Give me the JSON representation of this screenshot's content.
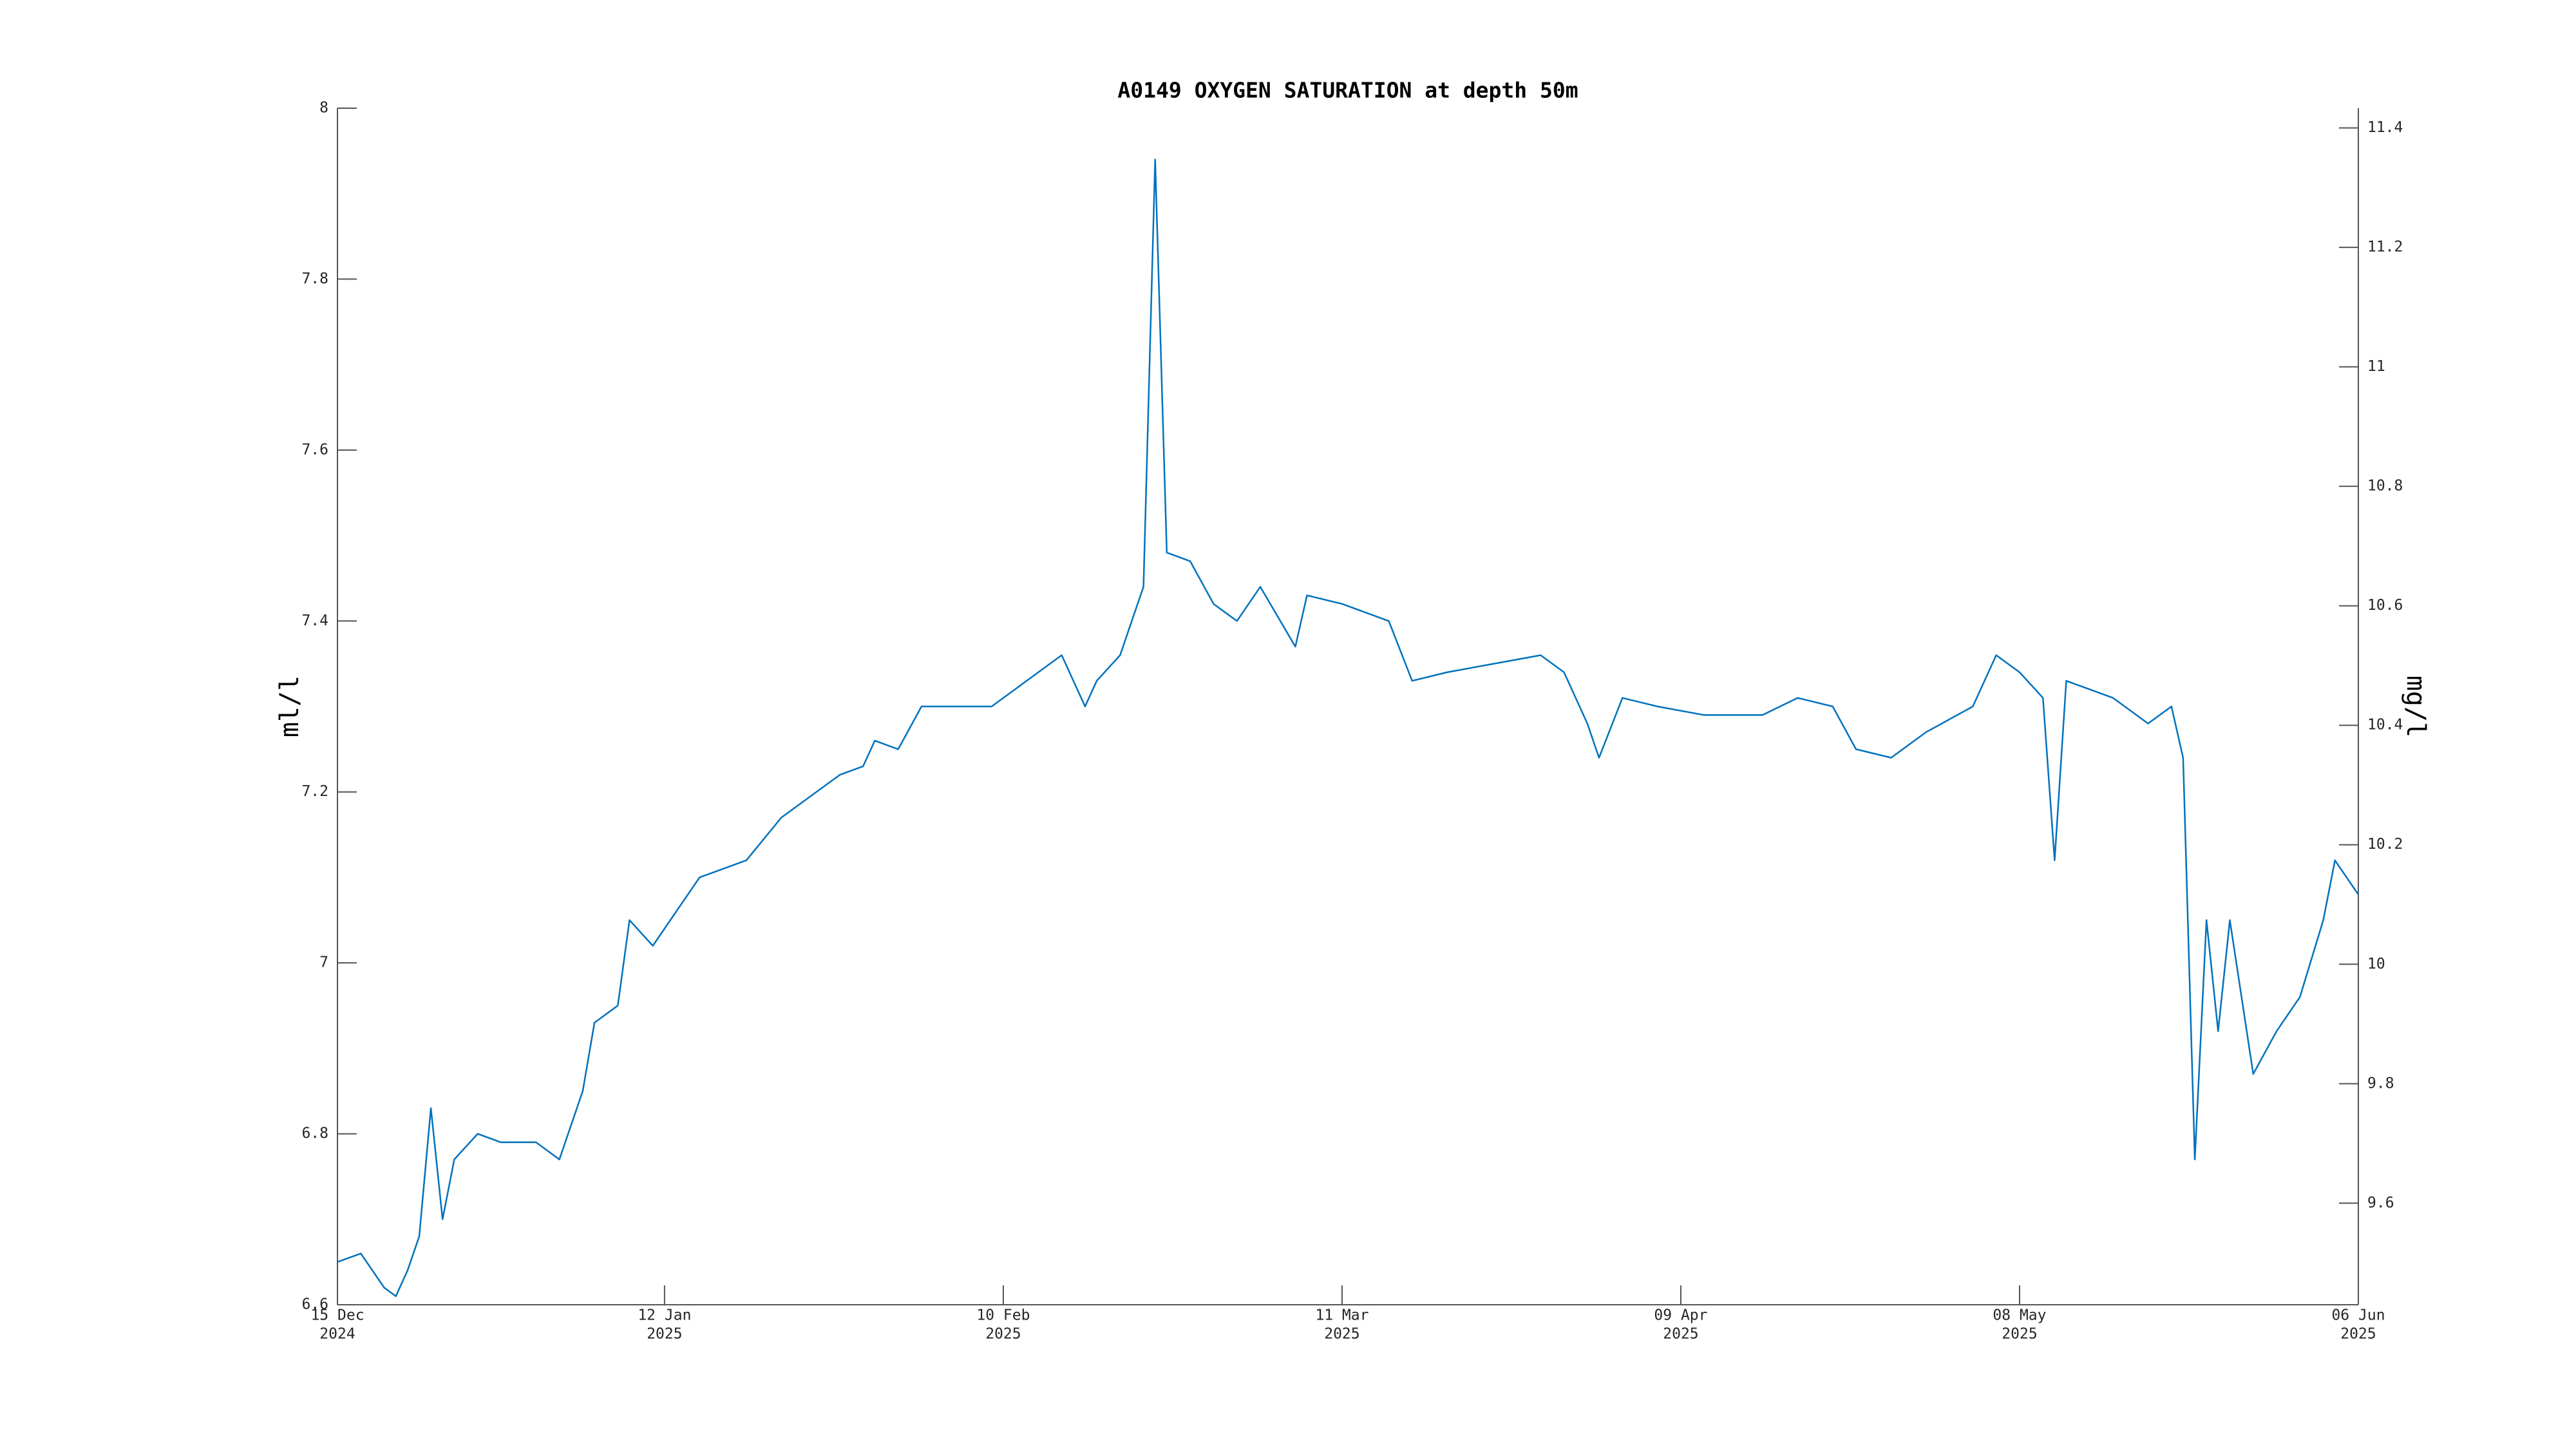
{
  "chart_data": {
    "type": "line",
    "title": "A0149 OXYGEN SATURATION at depth 50m",
    "ylabel": "ml/l",
    "y2label": "mg/l",
    "color": "#0072bd",
    "x": [
      "2024-12-15",
      "2024-12-17",
      "2024-12-19",
      "2024-12-20",
      "2024-12-21",
      "2024-12-22",
      "2024-12-23",
      "2024-12-24",
      "2024-12-25",
      "2024-12-27",
      "2024-12-29",
      "2025-01-01",
      "2025-01-03",
      "2025-01-05",
      "2025-01-06",
      "2025-01-08",
      "2025-01-09",
      "2025-01-11",
      "2025-01-13",
      "2025-01-15",
      "2025-01-17",
      "2025-01-19",
      "2025-01-22",
      "2025-01-25",
      "2025-01-27",
      "2025-01-29",
      "2025-01-30",
      "2025-02-01",
      "2025-02-03",
      "2025-02-06",
      "2025-02-09",
      "2025-02-11",
      "2025-02-13",
      "2025-02-15",
      "2025-02-17",
      "2025-02-18",
      "2025-02-20",
      "2025-02-21",
      "2025-02-22",
      "2025-02-23",
      "2025-02-24",
      "2025-02-26",
      "2025-02-28",
      "2025-03-02",
      "2025-03-04",
      "2025-03-07",
      "2025-03-08",
      "2025-03-11",
      "2025-03-15",
      "2025-03-17",
      "2025-03-20",
      "2025-03-24",
      "2025-03-28",
      "2025-03-30",
      "2025-04-01",
      "2025-04-02",
      "2025-04-04",
      "2025-04-07",
      "2025-04-11",
      "2025-04-16",
      "2025-04-19",
      "2025-04-22",
      "2025-04-24",
      "2025-04-27",
      "2025-04-30",
      "2025-05-04",
      "2025-05-06",
      "2025-05-08",
      "2025-05-10",
      "2025-05-11",
      "2025-05-12",
      "2025-05-16",
      "2025-05-19",
      "2025-05-21",
      "2025-05-22",
      "2025-05-23",
      "2025-05-24",
      "2025-05-25",
      "2025-05-26",
      "2025-05-28",
      "2025-05-30",
      "2025-06-01",
      "2025-06-03",
      "2025-06-04",
      "2025-06-06"
    ],
    "values": [
      6.65,
      6.66,
      6.62,
      6.61,
      6.64,
      6.68,
      6.83,
      6.7,
      6.77,
      6.8,
      6.79,
      6.79,
      6.77,
      6.85,
      6.93,
      6.95,
      7.05,
      7.02,
      7.06,
      7.1,
      7.11,
      7.12,
      7.17,
      7.2,
      7.22,
      7.23,
      7.26,
      7.25,
      7.3,
      7.3,
      7.3,
      7.32,
      7.34,
      7.36,
      7.3,
      7.33,
      7.36,
      7.4,
      7.44,
      7.94,
      7.48,
      7.47,
      7.42,
      7.4,
      7.44,
      7.37,
      7.43,
      7.42,
      7.4,
      7.33,
      7.34,
      7.35,
      7.36,
      7.34,
      7.28,
      7.24,
      7.31,
      7.3,
      7.29,
      7.29,
      7.31,
      7.3,
      7.25,
      7.24,
      7.27,
      7.3,
      7.36,
      7.34,
      7.31,
      7.12,
      7.33,
      7.31,
      7.28,
      7.3,
      7.24,
      6.77,
      7.05,
      6.92,
      7.05,
      6.87,
      6.92,
      6.96,
      7.05,
      7.12,
      7.08
    ],
    "xlim": [
      "2024-12-15",
      "2025-06-06"
    ],
    "xticks": [
      {
        "value": "2024-12-15",
        "label": [
          "15 Dec",
          "2024"
        ]
      },
      {
        "value": "2025-01-12",
        "label": [
          "12 Jan",
          "2025"
        ]
      },
      {
        "value": "2025-02-10",
        "label": [
          "10 Feb",
          "2025"
        ]
      },
      {
        "value": "2025-03-11",
        "label": [
          "11 Mar",
          "2025"
        ]
      },
      {
        "value": "2025-04-09",
        "label": [
          "09 Apr",
          "2025"
        ]
      },
      {
        "value": "2025-05-08",
        "label": [
          "08 May",
          "2025"
        ]
      },
      {
        "value": "2025-06-06",
        "label": [
          "06 Jun",
          "2025"
        ]
      }
    ],
    "ylim": [
      6.6,
      8
    ],
    "yticks": [
      6.6,
      6.8,
      7,
      7.2,
      7.4,
      7.6,
      7.8,
      8
    ],
    "y2lim": [
      9.43,
      11.433
    ],
    "y2ticks": [
      9.6,
      9.8,
      10,
      10.2,
      10.4,
      10.6,
      10.8,
      11,
      11.2,
      11.4
    ]
  }
}
